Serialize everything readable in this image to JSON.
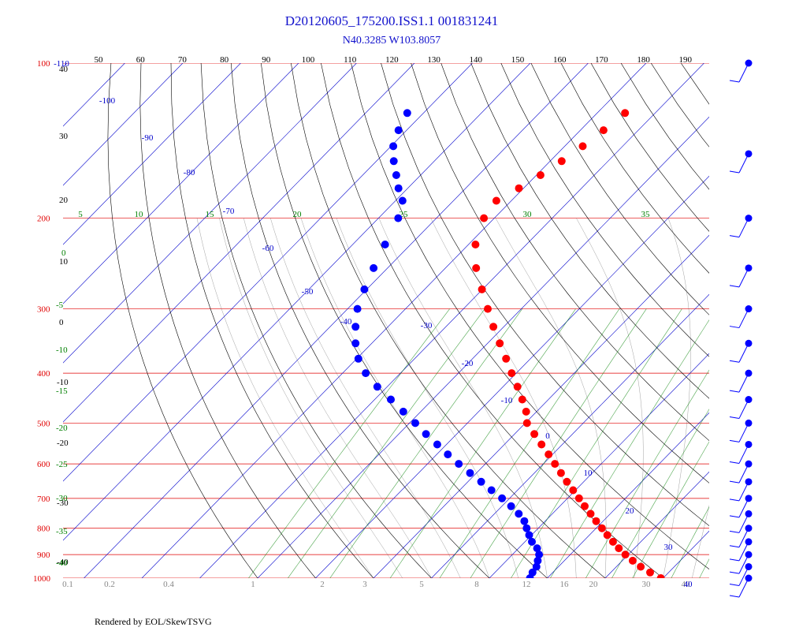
{
  "header": {
    "title": "D20120605_175200.ISS1.1 001831241",
    "subtitle": "N40.3285 W103.8057"
  },
  "footer": {
    "rendered_by": "Rendered by EOL/SkewTSVG"
  },
  "colors": {
    "temperature": "#ff0000",
    "dewpoint": "#0000ff",
    "isobar": "#e00000",
    "isotherm": "#0000cc",
    "dry_adiabat": "#000000",
    "moist_adiabat": "#555555",
    "mixing_ratio": "#008000"
  },
  "chart_data": {
    "type": "scatter",
    "subtype": "skew-t log-p diagram",
    "y_scale": "log pressure (inverted)",
    "ylim": [
      1000,
      100
    ],
    "pressure_labels": [
      100,
      200,
      300,
      400,
      500,
      600,
      700,
      800,
      900,
      1000
    ],
    "height_tick_labels": [
      40,
      30,
      20,
      10,
      0,
      -10,
      -20,
      -30,
      -40
    ],
    "top_tick_labels": [
      50,
      60,
      70,
      80,
      90,
      100,
      110,
      120,
      130,
      140,
      150,
      160,
      170,
      180,
      190
    ],
    "isotherm_labels": [
      -110,
      -100,
      -90,
      -80,
      -70,
      -60,
      -50,
      -40,
      -30,
      -20,
      -10,
      0,
      10,
      20,
      30,
      40
    ],
    "mixing_ratio_labels": [
      "0.1",
      "0.2",
      "0.4",
      "1",
      "2",
      "3",
      "5",
      "8",
      "12",
      "16",
      "20",
      "30",
      "40"
    ],
    "adiabat_labels_200": [
      5,
      10,
      15,
      20,
      25,
      30,
      35
    ],
    "adiabat_labels_left": [
      0,
      -5,
      -10,
      -15,
      -20,
      -25,
      -30,
      -35,
      -40
    ],
    "grid": true,
    "series": [
      {
        "name": "temperature",
        "units": "°C",
        "points": [
          [
            1000,
            29.6
          ],
          [
            975,
            26.8
          ],
          [
            950,
            24.2
          ],
          [
            925,
            21.8
          ],
          [
            900,
            19.5
          ],
          [
            875,
            17.3
          ],
          [
            850,
            15.2
          ],
          [
            825,
            13.1
          ],
          [
            800,
            11.0
          ],
          [
            775,
            8.8
          ],
          [
            750,
            6.6
          ],
          [
            725,
            4.3
          ],
          [
            700,
            2.0
          ],
          [
            675,
            -0.4
          ],
          [
            650,
            -2.9
          ],
          [
            625,
            -5.4
          ],
          [
            600,
            -8.0
          ],
          [
            575,
            -10.7
          ],
          [
            550,
            -13.6
          ],
          [
            525,
            -16.6
          ],
          [
            500,
            -19.7
          ],
          [
            475,
            -21.8
          ],
          [
            450,
            -24.5
          ],
          [
            425,
            -27.5
          ],
          [
            400,
            -30.8
          ],
          [
            375,
            -34.2
          ],
          [
            350,
            -37.9
          ],
          [
            325,
            -41.8
          ],
          [
            300,
            -45.8
          ],
          [
            275,
            -50.1
          ],
          [
            250,
            -54.7
          ],
          [
            225,
            -58.8
          ],
          [
            200,
            -61.8
          ],
          [
            185,
            -62.6
          ],
          [
            175,
            -60.8
          ],
          [
            165,
            -59.3
          ],
          [
            155,
            -58.0
          ],
          [
            145,
            -56.9
          ],
          [
            135,
            -56.0
          ],
          [
            125,
            -55.2
          ]
        ]
      },
      {
        "name": "dewpoint",
        "units": "°C",
        "points": [
          [
            1000,
            7.0
          ],
          [
            975,
            6.5
          ],
          [
            950,
            6.2
          ],
          [
            925,
            5.4
          ],
          [
            900,
            4.6
          ],
          [
            875,
            3.2
          ],
          [
            850,
            1.2
          ],
          [
            825,
            -0.4
          ],
          [
            800,
            -2.0
          ],
          [
            775,
            -3.6
          ],
          [
            750,
            -5.8
          ],
          [
            725,
            -8.4
          ],
          [
            700,
            -11.3
          ],
          [
            675,
            -14.5
          ],
          [
            650,
            -17.7
          ],
          [
            625,
            -21.1
          ],
          [
            600,
            -24.6
          ],
          [
            575,
            -28.1
          ],
          [
            550,
            -31.6
          ],
          [
            525,
            -35.3
          ],
          [
            500,
            -39.0
          ],
          [
            475,
            -43.0
          ],
          [
            450,
            -47.2
          ],
          [
            425,
            -51.7
          ],
          [
            400,
            -56.0
          ],
          [
            375,
            -59.7
          ],
          [
            350,
            -62.8
          ],
          [
            325,
            -65.6
          ],
          [
            300,
            -68.3
          ],
          [
            275,
            -70.4
          ],
          [
            250,
            -72.4
          ],
          [
            225,
            -74.4
          ],
          [
            200,
            -76.6
          ],
          [
            185,
            -78.8
          ],
          [
            175,
            -81.6
          ],
          [
            165,
            -84.2
          ],
          [
            155,
            -87.0
          ],
          [
            145,
            -89.6
          ],
          [
            135,
            -91.4
          ],
          [
            125,
            -92.8
          ]
        ]
      }
    ],
    "wind_barb_column": "right side, one barb per pressure level"
  }
}
